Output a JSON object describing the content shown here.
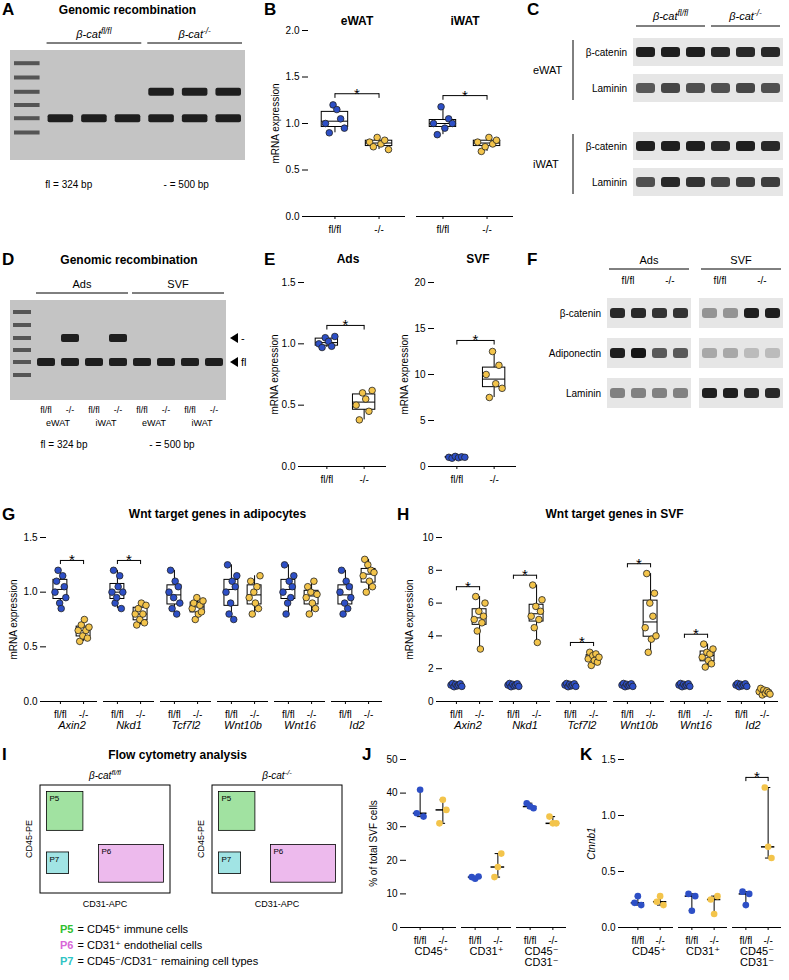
{
  "chart_data": [
    {
      "panel": "B",
      "type": "box",
      "ylabel": "mRNA expression",
      "categories": [
        "eWAT",
        "iWAT"
      ],
      "series": [
        {
          "name": "fl/fl",
          "color": "#2d4fc6",
          "values": [
            [
              1.0,
              0.9,
              1.2,
              1.15,
              1.05,
              0.95
            ],
            [
              1.0,
              0.88,
              1.18,
              0.95,
              1.05,
              1.0
            ]
          ]
        },
        {
          "name": "-/-",
          "color": "#f3c44b",
          "values": [
            [
              0.8,
              0.75,
              0.85,
              0.78,
              0.82,
              0.72
            ],
            [
              0.8,
              0.7,
              0.75,
              0.85,
              0.78,
              0.82
            ]
          ]
        }
      ],
      "ylim": [
        0,
        2
      ],
      "yticks": [
        {
          "value": 0,
          "label": "0.0"
        },
        0.5,
        {
          "value": 1,
          "label": "1.0"
        },
        1.5,
        {
          "value": 2,
          "label": "2.0"
        }
      ],
      "significance": [
        {
          "category": "eWAT",
          "label": "*"
        },
        {
          "category": "iWAT",
          "label": "*"
        }
      ]
    },
    {
      "panel": "E",
      "type": "box",
      "title": "Ads",
      "ylabel": "mRNA expression",
      "series": [
        {
          "name": "fl/fl",
          "color": "#2d4fc6",
          "values": [
            1.0,
            0.97,
            1.05,
            1.02,
            0.98,
            1.06
          ]
        },
        {
          "name": "-/-",
          "color": "#f3c44b",
          "values": [
            0.5,
            0.38,
            0.6,
            0.55,
            0.45,
            0.62
          ]
        }
      ],
      "ylim": [
        0,
        1.5
      ],
      "yticks": [
        {
          "value": 0,
          "label": "0.0"
        },
        0.5,
        {
          "value": 1,
          "label": "1.0"
        },
        1.5
      ],
      "significance": [
        {
          "label": "*"
        }
      ]
    },
    {
      "type": "box",
      "title": "SVF",
      "ylabel": "mRNA expression",
      "series": [
        {
          "name": "fl/fl",
          "color": "#2d4fc6",
          "values": [
            1.0,
            0.9,
            1.1,
            0.95,
            1.05,
            1.0
          ]
        },
        {
          "name": "-/-",
          "color": "#f3c44b",
          "values": [
            10.0,
            7.5,
            12.5,
            9.0,
            11.0,
            8.5
          ]
        }
      ],
      "ylim": [
        0,
        20
      ],
      "yticks": [
        0,
        5,
        10,
        15,
        20
      ],
      "significance": [
        {
          "label": "*"
        }
      ]
    },
    {
      "panel": "G",
      "type": "box",
      "title": "Wnt target genes in adipocytes",
      "ylabel": "mRNA expression",
      "categories": [
        "Axin2",
        "Nkd1",
        "Tcf7l2",
        "Wnt10b",
        "Wnt16",
        "Id2"
      ],
      "series": [
        {
          "name": "fl/fl",
          "color": "#2d4fc6",
          "values": [
            [
              1.0,
              1.1,
              1.2,
              0.9,
              0.85,
              1.15,
              1.05,
              0.95
            ],
            [
              1.0,
              1.2,
              0.9,
              0.95,
              1.05,
              1.15,
              0.85,
              1.0
            ],
            [
              1.0,
              1.2,
              0.85,
              0.95,
              1.1,
              0.8,
              1.05,
              0.9
            ],
            [
              1.0,
              1.25,
              0.8,
              0.9,
              1.1,
              0.75,
              1.05,
              1.15
            ],
            [
              1.0,
              1.25,
              0.8,
              0.9,
              1.1,
              0.95,
              1.05,
              1.15
            ],
            [
              1.0,
              1.2,
              0.8,
              0.9,
              1.1,
              0.85,
              1.05,
              0.95
            ]
          ]
        },
        {
          "name": "-/-",
          "color": "#f3c44b",
          "values": [
            [
              0.65,
              0.55,
              0.7,
              0.6,
              0.75,
              0.65,
              0.58,
              0.68
            ],
            [
              0.8,
              0.7,
              0.85,
              0.75,
              0.9,
              0.8,
              0.72,
              0.88
            ],
            [
              0.85,
              0.9,
              0.75,
              0.95,
              0.8,
              0.88,
              0.82,
              0.92
            ],
            [
              0.95,
              1.1,
              0.8,
              1.0,
              0.9,
              1.05,
              0.85,
              1.15
            ],
            [
              0.95,
              1.05,
              0.8,
              1.0,
              0.9,
              1.1,
              0.85,
              0.98
            ],
            [
              1.15,
              1.3,
              1.0,
              1.25,
              1.1,
              1.2,
              1.05,
              1.18
            ]
          ]
        }
      ],
      "ylim": [
        0,
        1.5
      ],
      "yticks": [
        {
          "value": 0,
          "label": "0.0"
        },
        0.5,
        {
          "value": 1,
          "label": "1.0"
        },
        1.5
      ],
      "significance": [
        {
          "category": "Axin2",
          "label": "*"
        },
        {
          "category": "Nkd1",
          "label": "*"
        }
      ]
    },
    {
      "panel": "H",
      "type": "box",
      "title": "Wnt target genes in SVF",
      "ylabel": "mRNA expression",
      "categories": [
        "Axin2",
        "Nkd1",
        "Tcf7l2",
        "Wnt10b",
        "Wnt16",
        "Id2"
      ],
      "series": [
        {
          "name": "fl/fl",
          "color": "#2d4fc6",
          "values": [
            [
              1.0,
              1.1,
              0.9,
              1.05,
              0.95,
              1.0,
              1.08,
              0.92
            ],
            [
              1.0,
              1.1,
              0.9,
              1.05,
              0.95,
              1.0,
              1.08,
              0.92
            ],
            [
              1.0,
              1.1,
              0.9,
              1.05,
              0.95,
              1.0,
              1.08,
              0.92
            ],
            [
              1.0,
              1.1,
              0.9,
              1.05,
              0.95,
              1.0,
              1.08,
              0.92
            ],
            [
              1.0,
              1.1,
              0.9,
              1.05,
              0.95,
              1.0,
              1.08,
              0.92
            ],
            [
              1.0,
              1.1,
              0.9,
              1.05,
              0.95,
              1.0,
              1.08,
              0.92
            ]
          ]
        },
        {
          "name": "-/-",
          "color": "#f3c44b",
          "values": [
            [
              5.0,
              6.4,
              4.3,
              5.5,
              3.2,
              4.8,
              5.2,
              6.0
            ],
            [
              5.2,
              7.1,
              4.5,
              5.8,
              3.6,
              5.0,
              5.5,
              6.2
            ],
            [
              2.6,
              3.0,
              2.2,
              2.8,
              2.5,
              2.9,
              2.4,
              2.7
            ],
            [
              4.5,
              7.8,
              3.0,
              6.0,
              3.8,
              5.2,
              6.6,
              4.0
            ],
            [
              2.7,
              3.5,
              2.1,
              3.0,
              2.5,
              2.9,
              2.3,
              3.2
            ],
            [
              0.6,
              0.8,
              0.4,
              0.7,
              0.5,
              0.65,
              0.55,
              0.45
            ]
          ]
        }
      ],
      "ylim": [
        0,
        10
      ],
      "yticks": [
        0,
        2,
        4,
        6,
        8,
        10
      ],
      "significance": [
        {
          "category": "Axin2",
          "label": "*"
        },
        {
          "category": "Nkd1",
          "label": "*"
        },
        {
          "category": "Tcf7l2",
          "label": "*"
        },
        {
          "category": "Wnt10b",
          "label": "*"
        },
        {
          "category": "Wnt16",
          "label": "*"
        }
      ]
    },
    {
      "panel": "J",
      "type": "dot",
      "ylabel": "% of total SVF cells",
      "categories": [
        "CD45⁺",
        "CD31⁺",
        "CD45⁻\nCD31⁻"
      ],
      "series": [
        {
          "name": "fl/fl",
          "color": "#2d4fc6",
          "values": [
            [
              34,
              41,
              33
            ],
            [
              15,
              14.5,
              15.2
            ],
            [
              37,
              36,
              35.5
            ]
          ]
        },
        {
          "name": "-/-",
          "color": "#f3c44b",
          "values": [
            [
              31,
              38,
              35
            ],
            [
              15,
              18,
              22
            ],
            [
              33,
              31,
              31
            ]
          ]
        }
      ],
      "ylim": [
        0,
        50
      ],
      "yticks": [
        0,
        10,
        20,
        30,
        40,
        50
      ]
    },
    {
      "panel": "K",
      "type": "dot",
      "ylabel": "Ctnnb1",
      "categories": [
        "CD45⁺",
        "CD31⁺",
        "CD45⁻\nCD31⁻"
      ],
      "series": [
        {
          "name": "fl/fl",
          "color": "#2d4fc6",
          "values": [
            [
              0.22,
              0.28,
              0.2
            ],
            [
              0.3,
              0.15,
              0.28
            ],
            [
              0.32,
              0.2,
              0.3
            ]
          ]
        },
        {
          "name": "-/-",
          "color": "#f3c44b",
          "values": [
            [
              0.23,
              0.28,
              0.2
            ],
            [
              0.25,
              0.12,
              0.28
            ],
            [
              1.25,
              0.72,
              0.62
            ]
          ]
        }
      ],
      "ylim": [
        0,
        1.5
      ],
      "yticks": [
        {
          "value": 0,
          "label": "0.0"
        },
        0.5,
        {
          "value": 1,
          "label": "1.0"
        },
        1.5
      ],
      "significance": [
        {
          "category": "CD45⁻\nCD31⁻",
          "label": "*"
        }
      ]
    }
  ],
  "image_panels": {
    "A": {
      "panel": "A",
      "title": "Genomic recombination",
      "groups": [
        {
          "text": "β-cat",
          "sup": "fl/fl"
        },
        {
          "text": "β-cat",
          "sup": "-/-"
        }
      ],
      "band_order": [
        "-",
        "fl"
      ],
      "lanes": [
        {
          "ladder": true
        },
        {
          "group": 0,
          "bands": [
            "fl"
          ]
        },
        {
          "group": 0,
          "bands": [
            "fl"
          ]
        },
        {
          "group": 0,
          "bands": [
            "fl"
          ]
        },
        {
          "group": 1,
          "bands": [
            "-",
            "fl"
          ]
        },
        {
          "group": 1,
          "bands": [
            "-",
            "fl"
          ]
        },
        {
          "group": 1,
          "bands": [
            "-",
            "fl"
          ]
        }
      ],
      "notes": [
        "fl = 324 bp",
        "- = 500 bp"
      ]
    },
    "C": {
      "panel": "C",
      "groups": [
        {
          "text": "β-cat",
          "sup": "fl/fl",
          "lanes": 3
        },
        {
          "text": "β-cat",
          "sup": "-/-",
          "lanes": 3
        }
      ],
      "blocks": [
        {
          "name": "eWAT",
          "rows": [
            {
              "name": "β-catenin",
              "intensity": [
                0.9,
                0.9,
                0.9,
                0.85,
                0.85,
                0.85
              ]
            },
            {
              "name": "Laminin",
              "intensity": [
                0.6,
                0.7,
                0.65,
                0.65,
                0.7,
                0.65
              ]
            }
          ]
        },
        {
          "name": "iWAT",
          "rows": [
            {
              "name": "β-catenin",
              "intensity": [
                0.9,
                0.9,
                0.9,
                0.85,
                0.9,
                0.85
              ]
            },
            {
              "name": "Laminin",
              "intensity": [
                0.65,
                0.85,
                0.8,
                0.7,
                0.75,
                0.75
              ]
            }
          ]
        }
      ]
    },
    "D": {
      "panel": "D",
      "title": "Genomic recombination",
      "groups": [
        {
          "name": "Ads",
          "lanes": 4
        },
        {
          "name": "SVF",
          "lanes": 4
        }
      ],
      "band_order": [
        "-",
        "fl"
      ],
      "lanes": [
        {
          "ladder": true
        },
        {
          "genotype": "fl/fl",
          "tissue": "eWAT",
          "bands": [
            "fl"
          ]
        },
        {
          "genotype": "-/-",
          "tissue": "eWAT",
          "bands": [
            "-",
            "fl"
          ]
        },
        {
          "genotype": "fl/fl",
          "tissue": "iWAT",
          "bands": [
            "fl"
          ]
        },
        {
          "genotype": "-/-",
          "tissue": "iWAT",
          "bands": [
            "-",
            "fl"
          ]
        },
        {
          "genotype": "fl/fl",
          "tissue": "eWAT",
          "bands": [
            "fl"
          ]
        },
        {
          "genotype": "-/-",
          "tissue": "eWAT",
          "bands": [
            "fl"
          ]
        },
        {
          "genotype": "fl/fl",
          "tissue": "iWAT",
          "bands": [
            "fl"
          ]
        },
        {
          "genotype": "-/-",
          "tissue": "iWAT",
          "bands": [
            "fl"
          ]
        }
      ],
      "notes": [
        "fl = 324 bp",
        "- = 500 bp"
      ]
    },
    "F": {
      "panel": "F",
      "groups": [
        {
          "name": "Ads",
          "subgroups": [
            "fl/fl",
            "-/-"
          ]
        },
        {
          "name": "SVF",
          "subgroups": [
            "fl/fl",
            "-/-"
          ]
        }
      ],
      "lanes_per_subgroup": 2,
      "rows": [
        {
          "name": "β-catenin",
          "intensity": [
            0.85,
            0.85,
            0.8,
            0.8,
            0.3,
            0.3,
            0.9,
            0.9
          ]
        },
        {
          "name": "Adiponectin",
          "intensity": [
            0.9,
            0.95,
            0.6,
            0.6,
            0.2,
            0.2,
            0.1,
            0.1
          ]
        },
        {
          "name": "Laminin",
          "intensity": [
            0.4,
            0.4,
            0.4,
            0.4,
            0.9,
            0.9,
            0.85,
            0.85
          ]
        }
      ]
    },
    "I": {
      "panel": "I",
      "title": "Flow cytometry analysis",
      "plots": [
        {
          "text": "β-cat",
          "sup": "fl/fl"
        },
        {
          "text": "β-cat",
          "sup": "-/-"
        }
      ],
      "ylabel": "CD45-PE",
      "xlabel": "CD31-APC",
      "gates": [
        {
          "name": "P5",
          "color": "#2fbf2f",
          "description": "= CD45⁺ immune cells"
        },
        {
          "name": "P6",
          "color": "#d867d8",
          "description": "= CD31⁺ endothelial cells"
        },
        {
          "name": "P7",
          "color": "#2fc4c4",
          "description": "= CD45⁻/CD31⁻ remaining cell types"
        }
      ]
    }
  }
}
